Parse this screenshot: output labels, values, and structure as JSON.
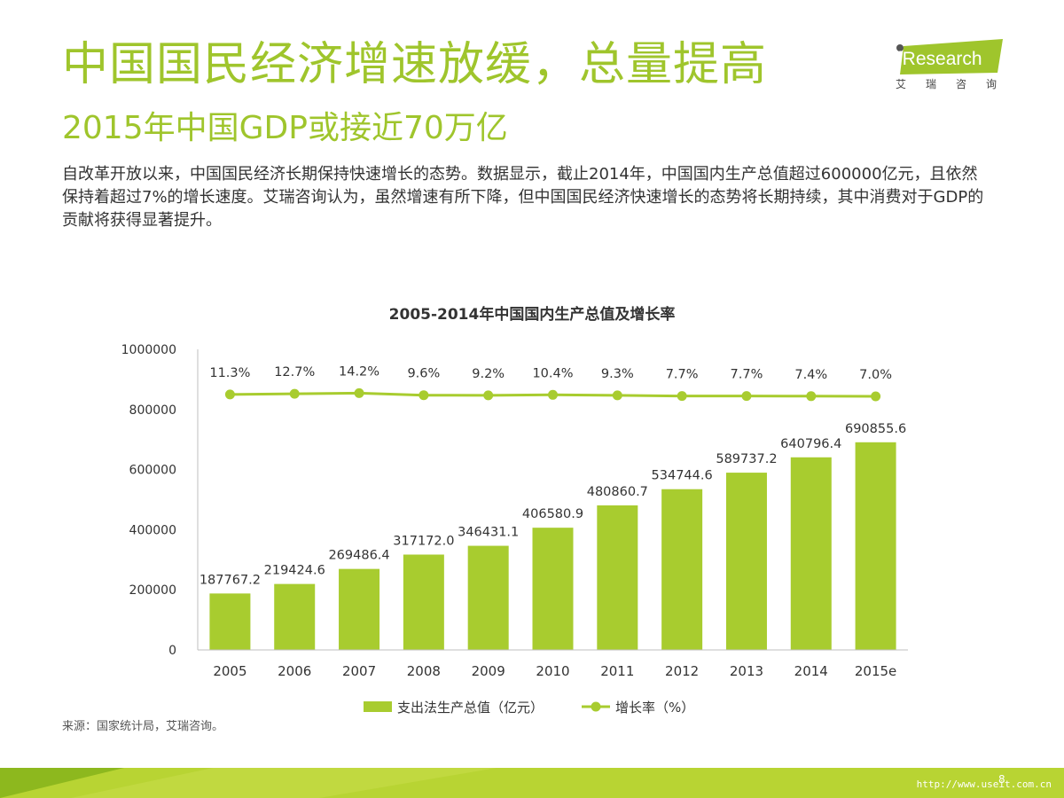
{
  "page": {
    "title": "中国国民经济增速放缓，总量提高",
    "subtitle": "2015年中国GDP或接近70万亿",
    "body": "自改革开放以来，中国国民经济长期保持快速增长的态势。数据显示，截止2014年，中国国内生产总值超过600000亿元，且依然保持着超过7%的增长速度。艾瑞咨询认为，虽然增速有所下降，但中国国民经济快速增长的态势将长期持续，其中消费对于GDP的贡献将获得显著提升。",
    "source": "来源：国家统计局，艾瑞咨询。",
    "page_number": "8",
    "footer_url": "http://www.useit.com.cn"
  },
  "logo": {
    "brand": "iResearch",
    "sub": "艾瑞咨询"
  },
  "colors": {
    "accent": "#9fc52c",
    "bar": "#a8cc2f",
    "footer_dark": "#8db81e",
    "footer_light": "#c9dc4a"
  },
  "chart_data": {
    "type": "bar",
    "title": "2005-2014年中国国内生产总值及增长率",
    "categories": [
      "2005",
      "2006",
      "2007",
      "2008",
      "2009",
      "2010",
      "2011",
      "2012",
      "2013",
      "2014",
      "2015e"
    ],
    "series": [
      {
        "name": "支出法生产总值（亿元）",
        "type": "bar",
        "values": [
          187767.2,
          219424.6,
          269486.4,
          317172.0,
          346431.1,
          406580.9,
          480860.7,
          534744.6,
          589737.2,
          640796.4,
          690855.6
        ],
        "labels": [
          "187767.2",
          "219424.6",
          "269486.4",
          "317172.0",
          "346431.1",
          "406580.9",
          "480860.7",
          "534744.6",
          "589737.2",
          "640796.4",
          "690855.6"
        ]
      },
      {
        "name": "增长率（%）",
        "type": "line",
        "values": [
          11.3,
          12.7,
          14.2,
          9.6,
          9.2,
          10.4,
          9.3,
          7.7,
          7.7,
          7.4,
          7.0
        ],
        "labels": [
          "11.3%",
          "12.7%",
          "14.2%",
          "9.6%",
          "9.2%",
          "10.4%",
          "9.3%",
          "7.7%",
          "7.7%",
          "7.4%",
          "7.0%"
        ]
      }
    ],
    "ylim": [
      0,
      1000000
    ],
    "yticks": [
      "0",
      "200000",
      "400000",
      "600000",
      "800000",
      "1000000"
    ],
    "legend_position": "bottom",
    "grid": false
  }
}
